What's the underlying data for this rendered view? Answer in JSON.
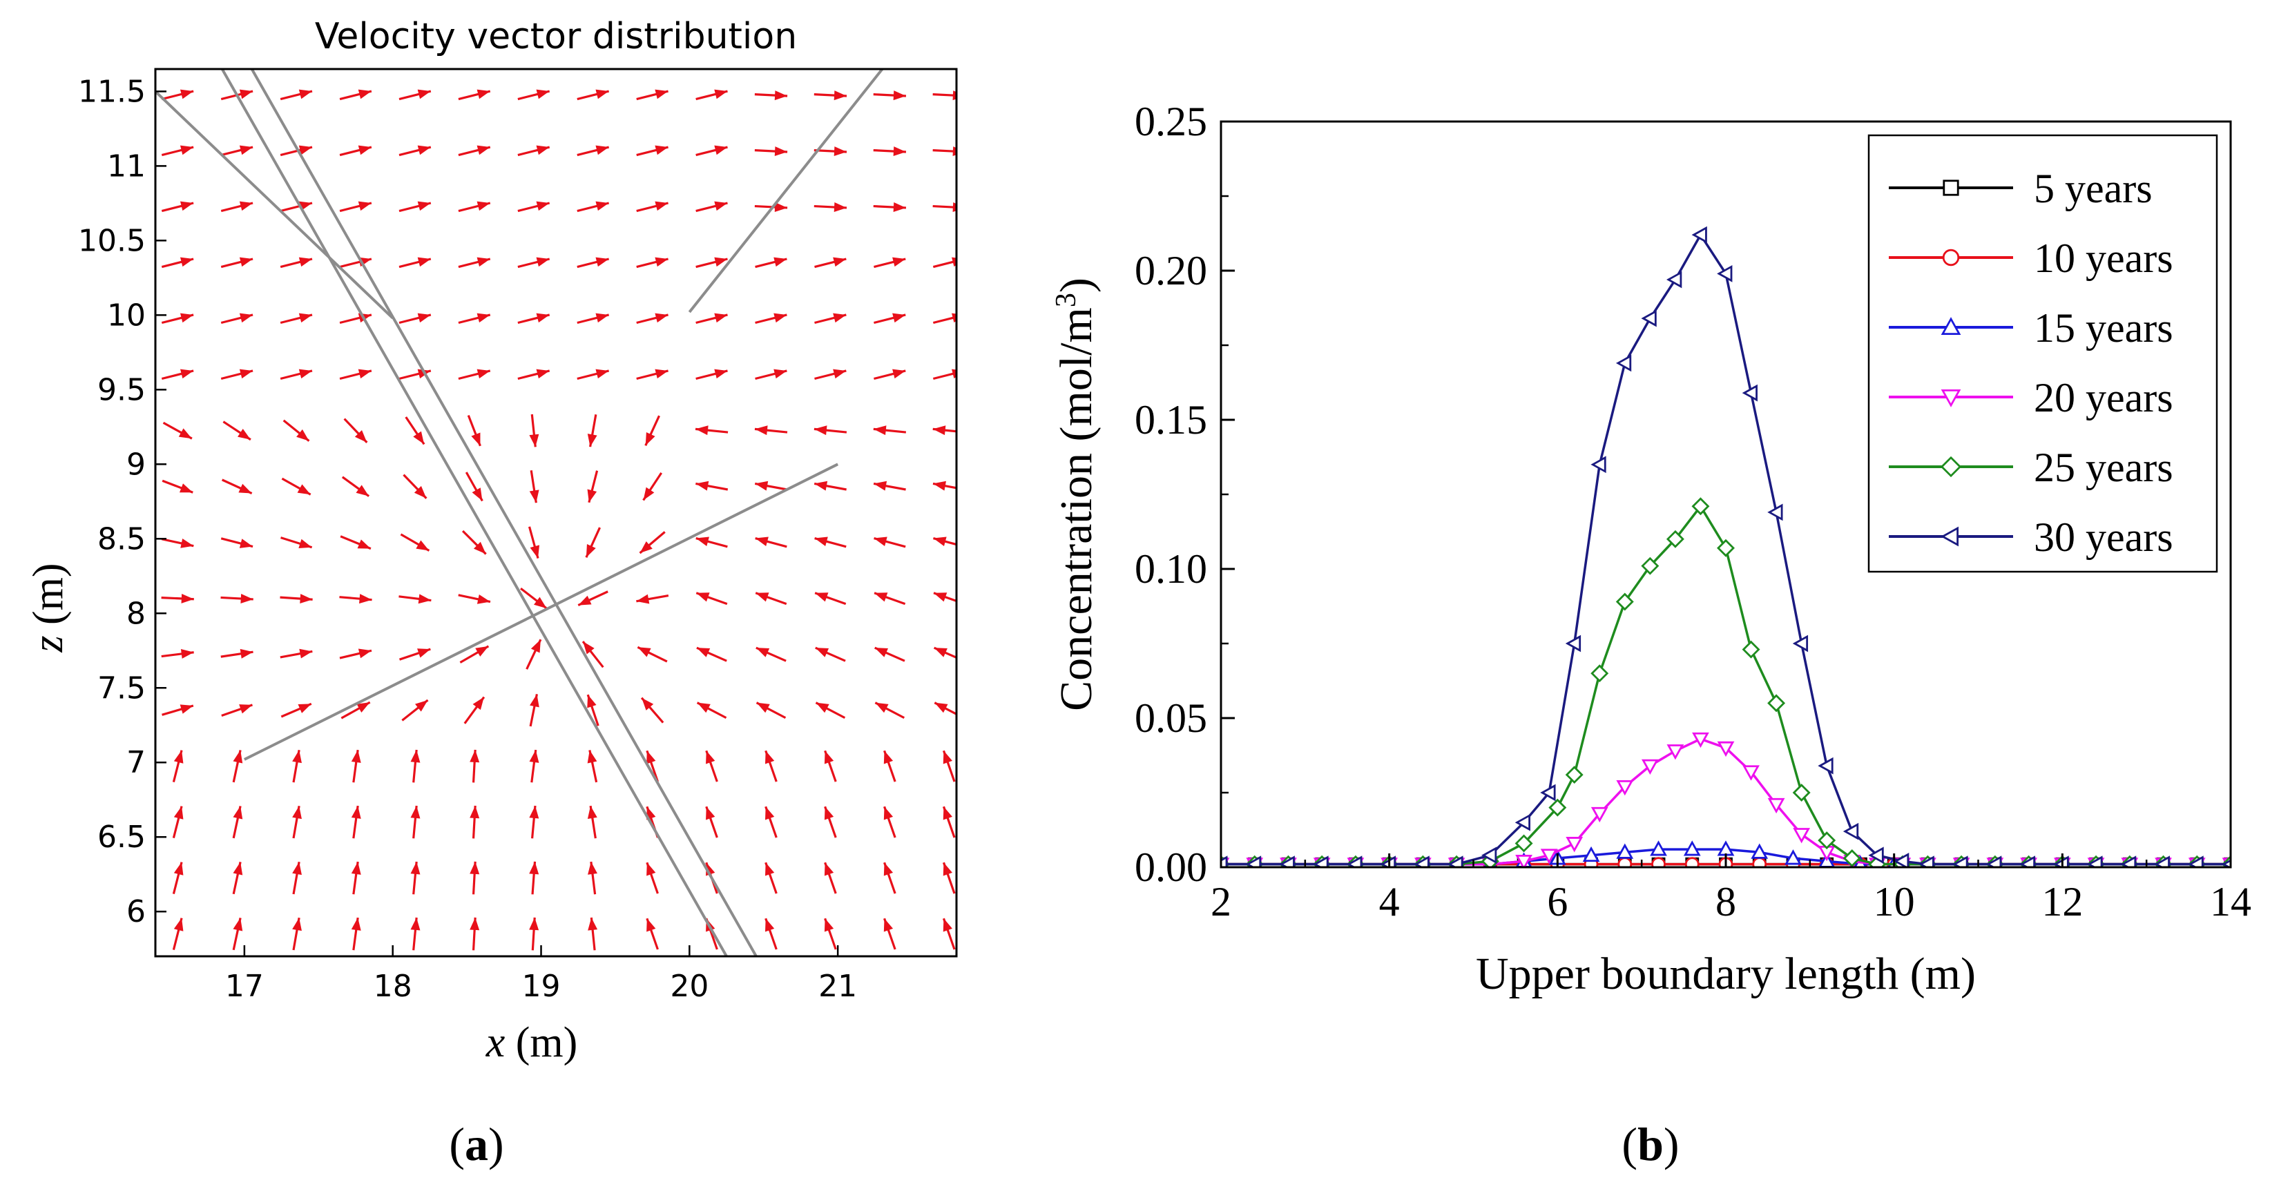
{
  "panel_labels": {
    "a": "a",
    "b": "b"
  },
  "chart_data": [
    {
      "type": "vector_field",
      "title": "Velocity vector distribution",
      "xlabel_var": "x",
      "xlabel_unit": " (m)",
      "ylabel_var": "z",
      "ylabel_unit": " (m)",
      "xlim": [
        16.4,
        21.8
      ],
      "ylim": [
        5.7,
        11.65
      ],
      "xticks": [
        "17",
        "18",
        "19",
        "20",
        "21"
      ],
      "yticks": [
        "6",
        "6.5",
        "7",
        "7.5",
        "8",
        "8.5",
        "9",
        "9.5",
        "10",
        "10.5",
        "11",
        "11.5"
      ],
      "vector_color": "#e8101a",
      "line_color": "#8c8c8c",
      "fracture_lines": [
        [
          [
            16.85,
            11.65
          ],
          [
            20.25,
            5.7
          ]
        ],
        [
          [
            17.05,
            11.65
          ],
          [
            20.45,
            5.7
          ]
        ],
        [
          [
            16.4,
            11.5
          ],
          [
            18.0,
            9.98
          ]
        ],
        [
          [
            17.0,
            7.02
          ],
          [
            21.0,
            9.0
          ]
        ],
        [
          [
            20.0,
            10.02
          ],
          [
            21.3,
            11.65
          ]
        ]
      ]
    },
    {
      "type": "line",
      "xlabel": "Upper boundary length (m)",
      "ylabel": "Concentration (mol/m",
      "ylabel_sup": "3",
      "ylabel_close": ")",
      "xlim": [
        2,
        14
      ],
      "ylim": [
        0,
        0.25
      ],
      "xticks": [
        "2",
        "4",
        "6",
        "8",
        "10",
        "12",
        "14"
      ],
      "yticks": [
        "0.00",
        "0.05",
        "0.10",
        "0.15",
        "0.20",
        "0.25"
      ],
      "legend_position": "top-right",
      "series": [
        {
          "name": "5 years",
          "color": "#000000",
          "marker": "square",
          "x": [
            2.0,
            2.4,
            2.8,
            3.2,
            3.6,
            4.0,
            4.4,
            4.8,
            5.2,
            5.6,
            6.0,
            6.4,
            6.8,
            7.2,
            7.6,
            8.0,
            8.4,
            8.8,
            9.2,
            9.6,
            10.0,
            10.4,
            10.8,
            11.2,
            11.6,
            12.0,
            12.4,
            12.8,
            13.2,
            13.6,
            14.0
          ],
          "y": [
            0.001,
            0.001,
            0.001,
            0.001,
            0.001,
            0.001,
            0.001,
            0.001,
            0.001,
            0.001,
            0.001,
            0.001,
            0.001,
            0.001,
            0.001,
            0.001,
            0.001,
            0.001,
            0.001,
            0.001,
            0.001,
            0.001,
            0.001,
            0.001,
            0.001,
            0.001,
            0.001,
            0.001,
            0.001,
            0.001,
            0.001
          ]
        },
        {
          "name": "10 years",
          "color": "#e8101a",
          "marker": "circle",
          "x": [
            2.0,
            2.4,
            2.8,
            3.2,
            3.6,
            4.0,
            4.4,
            4.8,
            5.2,
            5.6,
            6.0,
            6.4,
            6.8,
            7.2,
            7.6,
            8.0,
            8.4,
            8.8,
            9.2,
            9.6,
            10.0,
            10.4,
            10.8,
            11.2,
            11.6,
            12.0,
            12.4,
            12.8,
            13.2,
            13.6,
            14.0
          ],
          "y": [
            0.001,
            0.001,
            0.001,
            0.001,
            0.001,
            0.001,
            0.001,
            0.001,
            0.001,
            0.001,
            0.001,
            0.001,
            0.001,
            0.001,
            0.001,
            0.001,
            0.001,
            0.001,
            0.001,
            0.001,
            0.001,
            0.001,
            0.001,
            0.001,
            0.001,
            0.001,
            0.001,
            0.001,
            0.001,
            0.001,
            0.001
          ]
        },
        {
          "name": "15 years",
          "color": "#1a1adc",
          "marker": "triangle-up",
          "x": [
            2.0,
            2.4,
            2.8,
            3.2,
            3.6,
            4.0,
            4.4,
            4.8,
            5.2,
            5.6,
            6.0,
            6.4,
            6.8,
            7.2,
            7.6,
            8.0,
            8.4,
            8.8,
            9.2,
            9.6,
            10.0,
            10.4,
            10.8,
            11.2,
            11.6,
            12.0,
            12.4,
            12.8,
            13.2,
            13.6,
            14.0
          ],
          "y": [
            0.001,
            0.001,
            0.001,
            0.001,
            0.001,
            0.001,
            0.001,
            0.001,
            0.001,
            0.002,
            0.003,
            0.004,
            0.005,
            0.006,
            0.006,
            0.006,
            0.005,
            0.003,
            0.002,
            0.001,
            0.001,
            0.001,
            0.001,
            0.001,
            0.001,
            0.001,
            0.001,
            0.001,
            0.001,
            0.001,
            0.001
          ]
        },
        {
          "name": "20 years",
          "color": "#ee10ee",
          "marker": "triangle-down",
          "x": [
            2.0,
            2.4,
            2.8,
            3.2,
            3.6,
            4.0,
            4.4,
            4.8,
            5.2,
            5.6,
            5.9,
            6.2,
            6.5,
            6.8,
            7.1,
            7.4,
            7.7,
            8.0,
            8.3,
            8.6,
            8.9,
            9.2,
            9.5,
            9.8,
            10.1,
            10.4,
            10.8,
            11.2,
            11.6,
            12.0,
            12.4,
            12.8,
            13.2,
            13.6,
            14.0
          ],
          "y": [
            0.001,
            0.001,
            0.001,
            0.001,
            0.001,
            0.001,
            0.001,
            0.001,
            0.001,
            0.002,
            0.004,
            0.008,
            0.018,
            0.027,
            0.034,
            0.039,
            0.043,
            0.04,
            0.032,
            0.021,
            0.011,
            0.005,
            0.002,
            0.001,
            0.001,
            0.001,
            0.001,
            0.001,
            0.001,
            0.001,
            0.001,
            0.001,
            0.001,
            0.001,
            0.001
          ]
        },
        {
          "name": "25 years",
          "color": "#1e8c1e",
          "marker": "diamond",
          "x": [
            2.0,
            2.4,
            2.8,
            3.2,
            3.6,
            4.0,
            4.4,
            4.8,
            5.2,
            5.6,
            6.0,
            6.2,
            6.5,
            6.8,
            7.1,
            7.4,
            7.7,
            8.0,
            8.3,
            8.6,
            8.9,
            9.2,
            9.5,
            9.8,
            10.1,
            10.4,
            10.8,
            11.2,
            11.6,
            12.0,
            12.4,
            12.8,
            13.2,
            13.6,
            14.0
          ],
          "y": [
            0.001,
            0.001,
            0.001,
            0.001,
            0.001,
            0.001,
            0.001,
            0.001,
            0.002,
            0.008,
            0.02,
            0.031,
            0.065,
            0.089,
            0.101,
            0.11,
            0.121,
            0.107,
            0.073,
            0.055,
            0.025,
            0.009,
            0.003,
            0.001,
            0.001,
            0.001,
            0.001,
            0.001,
            0.001,
            0.001,
            0.001,
            0.001,
            0.001,
            0.001,
            0.001
          ]
        },
        {
          "name": "30 years",
          "color": "#1a1a80",
          "marker": "triangle-left",
          "x": [
            2.0,
            2.4,
            2.8,
            3.2,
            3.6,
            4.0,
            4.4,
            4.8,
            5.2,
            5.6,
            5.9,
            6.2,
            6.5,
            6.8,
            7.1,
            7.4,
            7.7,
            8.0,
            8.3,
            8.6,
            8.9,
            9.2,
            9.5,
            9.8,
            10.1,
            10.4,
            10.8,
            11.2,
            11.6,
            12.0,
            12.4,
            12.8,
            13.2,
            13.6,
            14.0
          ],
          "y": [
            0.001,
            0.001,
            0.001,
            0.001,
            0.001,
            0.001,
            0.001,
            0.001,
            0.004,
            0.015,
            0.025,
            0.075,
            0.135,
            0.169,
            0.184,
            0.197,
            0.212,
            0.199,
            0.159,
            0.119,
            0.075,
            0.034,
            0.012,
            0.004,
            0.002,
            0.001,
            0.001,
            0.001,
            0.001,
            0.001,
            0.001,
            0.001,
            0.001,
            0.001,
            0.001
          ]
        }
      ]
    }
  ]
}
